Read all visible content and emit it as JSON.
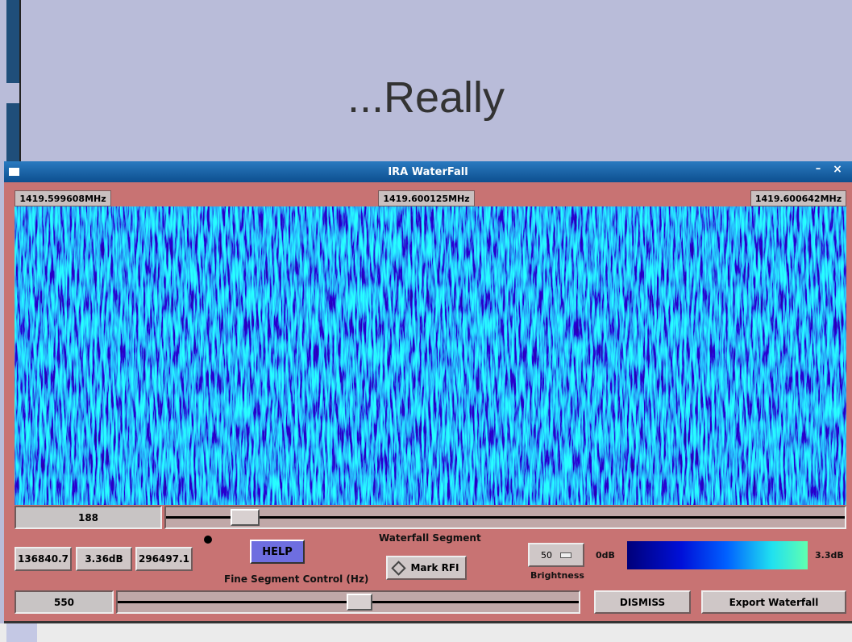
{
  "slide": {
    "title": "...Really"
  },
  "window": {
    "title": "IRA WaterFall",
    "frequency_labels": [
      "1419.599608MHz",
      "1419.600125MHz",
      "1419.600642MHz"
    ],
    "segment_value": 188,
    "segment_label": "Waterfall Segment",
    "help_button": "HELP",
    "readouts": [
      136840.7,
      "3.36dB",
      296497.1
    ],
    "mark_rfi_button": "Mark RFI",
    "fine_control_label": "Fine Segment Control (Hz)",
    "brightness_value": 50,
    "brightness_label": "Brightness",
    "colorbar_min": "0dB",
    "colorbar_max": "3.3dB",
    "fine_value": 550,
    "dismiss_button": "DISMISS",
    "export_button": "Export Waterfall"
  }
}
